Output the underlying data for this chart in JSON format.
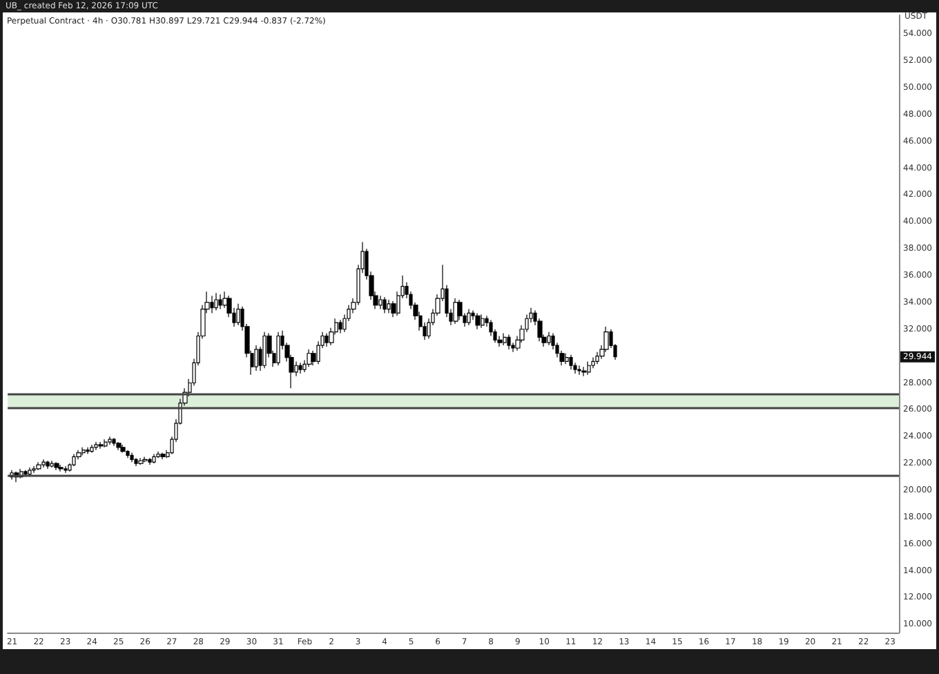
{
  "chart_data": {
    "type": "candlestick",
    "title": "Perpetual Contract · 4h · O30.781 H30.897 L29.721 C29.944 -0.837 (-2.72%)",
    "subtitle": "UB_ created Feb 12, 2026 17:09 UTC",
    "ylabel": "USDT",
    "x": [
      "2026-01-21T00:00",
      "2026-01-21T04:00",
      "2026-01-21T08:00",
      "2026-01-21T12:00",
      "2026-01-21T16:00",
      "2026-01-21T20:00",
      "2026-01-22T00:00",
      "2026-01-22T04:00",
      "2026-01-22T08:00",
      "2026-01-22T12:00",
      "2026-01-22T16:00",
      "2026-01-22T20:00",
      "2026-01-23T00:00",
      "2026-01-23T04:00",
      "2026-01-23T08:00",
      "2026-01-23T12:00",
      "2026-01-23T16:00",
      "2026-01-23T20:00",
      "2026-01-24T00:00",
      "2026-01-24T04:00",
      "2026-01-24T08:00",
      "2026-01-24T12:00",
      "2026-01-24T16:00",
      "2026-01-24T20:00",
      "2026-01-25T00:00",
      "2026-01-25T04:00",
      "2026-01-25T08:00",
      "2026-01-25T12:00",
      "2026-01-25T16:00",
      "2026-01-25T20:00",
      "2026-01-26T00:00",
      "2026-01-26T04:00",
      "2026-01-26T08:00",
      "2026-01-26T12:00",
      "2026-01-26T16:00",
      "2026-01-26T20:00",
      "2026-01-27T00:00",
      "2026-01-27T04:00",
      "2026-01-27T08:00",
      "2026-01-27T12:00",
      "2026-01-27T16:00",
      "2026-01-27T20:00",
      "2026-01-28T00:00",
      "2026-01-28T04:00",
      "2026-01-28T08:00",
      "2026-01-28T12:00",
      "2026-01-28T16:00",
      "2026-01-28T20:00",
      "2026-01-29T00:00",
      "2026-01-29T04:00",
      "2026-01-29T08:00",
      "2026-01-29T12:00",
      "2026-01-29T16:00",
      "2026-01-29T20:00",
      "2026-01-30T00:00",
      "2026-01-30T04:00",
      "2026-01-30T08:00",
      "2026-01-30T12:00",
      "2026-01-30T16:00",
      "2026-01-30T20:00",
      "2026-01-31T00:00",
      "2026-01-31T04:00",
      "2026-01-31T08:00",
      "2026-01-31T12:00",
      "2026-01-31T16:00",
      "2026-01-31T20:00",
      "2026-02-01T00:00",
      "2026-02-01T04:00",
      "2026-02-01T08:00",
      "2026-02-01T12:00",
      "2026-02-01T16:00",
      "2026-02-01T20:00",
      "2026-02-02T00:00",
      "2026-02-02T04:00",
      "2026-02-02T08:00",
      "2026-02-02T12:00",
      "2026-02-02T16:00",
      "2026-02-02T20:00",
      "2026-02-03T00:00",
      "2026-02-03T04:00",
      "2026-02-03T08:00",
      "2026-02-03T12:00",
      "2026-02-03T16:00",
      "2026-02-03T20:00",
      "2026-02-04T00:00",
      "2026-02-04T04:00",
      "2026-02-04T08:00",
      "2026-02-04T12:00",
      "2026-02-04T16:00",
      "2026-02-04T20:00",
      "2026-02-05T00:00",
      "2026-02-05T04:00",
      "2026-02-05T08:00",
      "2026-02-05T12:00",
      "2026-02-05T16:00",
      "2026-02-05T20:00",
      "2026-02-06T00:00",
      "2026-02-06T04:00",
      "2026-02-06T08:00",
      "2026-02-06T12:00",
      "2026-02-06T16:00",
      "2026-02-06T20:00",
      "2026-02-07T00:00",
      "2026-02-07T04:00",
      "2026-02-07T08:00",
      "2026-02-07T12:00",
      "2026-02-07T16:00",
      "2026-02-07T20:00",
      "2026-02-08T00:00",
      "2026-02-08T04:00",
      "2026-02-08T08:00",
      "2026-02-08T12:00",
      "2026-02-08T16:00",
      "2026-02-08T20:00",
      "2026-02-09T00:00",
      "2026-02-09T04:00",
      "2026-02-09T08:00",
      "2026-02-09T12:00",
      "2026-02-09T16:00",
      "2026-02-09T20:00",
      "2026-02-10T00:00",
      "2026-02-10T04:00",
      "2026-02-10T08:00",
      "2026-02-10T12:00",
      "2026-02-10T16:00",
      "2026-02-10T20:00",
      "2026-02-11T00:00",
      "2026-02-11T04:00",
      "2026-02-11T08:00",
      "2026-02-11T12:00",
      "2026-02-11T16:00",
      "2026-02-11T20:00",
      "2026-02-12T00:00",
      "2026-02-12T04:00",
      "2026-02-12T08:00",
      "2026-02-12T12:00",
      "2026-02-12T16:00"
    ],
    "series": [
      {
        "color": "#000000",
        "ohlc": [
          [
            21.0,
            21.5,
            20.8,
            21.3
          ],
          [
            21.3,
            21.4,
            20.6,
            21.0
          ],
          [
            21.0,
            21.6,
            20.9,
            21.4
          ],
          [
            21.4,
            21.5,
            21.0,
            21.2
          ],
          [
            21.2,
            21.7,
            21.1,
            21.5
          ],
          [
            21.5,
            21.8,
            21.3,
            21.6
          ],
          [
            21.6,
            22.1,
            21.5,
            21.9
          ],
          [
            21.9,
            22.3,
            21.7,
            22.1
          ],
          [
            22.1,
            22.2,
            21.6,
            21.8
          ],
          [
            21.8,
            22.2,
            21.7,
            22.0
          ],
          [
            22.0,
            22.1,
            21.5,
            21.7
          ],
          [
            21.7,
            21.9,
            21.4,
            21.6
          ],
          [
            21.6,
            21.8,
            21.3,
            21.5
          ],
          [
            21.5,
            22.0,
            21.4,
            21.9
          ],
          [
            21.9,
            22.7,
            21.8,
            22.5
          ],
          [
            22.5,
            23.0,
            22.3,
            22.8
          ],
          [
            22.8,
            23.2,
            22.6,
            23.0
          ],
          [
            23.0,
            23.2,
            22.7,
            22.9
          ],
          [
            22.9,
            23.4,
            22.8,
            23.2
          ],
          [
            23.2,
            23.6,
            23.0,
            23.4
          ],
          [
            23.4,
            23.6,
            23.1,
            23.3
          ],
          [
            23.3,
            23.8,
            23.2,
            23.6
          ],
          [
            23.6,
            24.0,
            23.4,
            23.8
          ],
          [
            23.8,
            23.9,
            23.3,
            23.5
          ],
          [
            23.5,
            23.6,
            23.0,
            23.2
          ],
          [
            23.2,
            23.4,
            22.8,
            22.9
          ],
          [
            22.9,
            23.0,
            22.4,
            22.6
          ],
          [
            22.6,
            22.8,
            22.1,
            22.3
          ],
          [
            22.3,
            22.4,
            21.8,
            22.0
          ],
          [
            22.0,
            22.4,
            21.9,
            22.2
          ],
          [
            22.2,
            22.5,
            22.1,
            22.3
          ],
          [
            22.3,
            22.4,
            21.9,
            22.1
          ],
          [
            22.1,
            22.7,
            22.0,
            22.5
          ],
          [
            22.5,
            22.9,
            22.4,
            22.7
          ],
          [
            22.7,
            22.8,
            22.3,
            22.5
          ],
          [
            22.5,
            23.0,
            22.4,
            22.8
          ],
          [
            22.8,
            24.0,
            22.7,
            23.8
          ],
          [
            23.8,
            25.3,
            23.6,
            25.0
          ],
          [
            25.0,
            26.8,
            24.9,
            26.5
          ],
          [
            26.5,
            27.6,
            26.3,
            27.3
          ],
          [
            27.3,
            28.3,
            27.0,
            28.0
          ],
          [
            28.0,
            29.8,
            27.8,
            29.5
          ],
          [
            29.5,
            31.8,
            29.3,
            31.5
          ],
          [
            31.5,
            33.8,
            31.3,
            33.5
          ],
          [
            33.5,
            34.8,
            33.2,
            34.0
          ],
          [
            34.0,
            34.5,
            33.2,
            33.6
          ],
          [
            33.6,
            34.7,
            33.4,
            34.2
          ],
          [
            34.2,
            34.6,
            33.5,
            33.8
          ],
          [
            33.8,
            34.8,
            33.6,
            34.3
          ],
          [
            34.3,
            34.5,
            32.9,
            33.2
          ],
          [
            33.2,
            33.6,
            32.2,
            32.5
          ],
          [
            32.5,
            33.9,
            32.3,
            33.5
          ],
          [
            33.5,
            33.7,
            31.9,
            32.2
          ],
          [
            32.2,
            32.4,
            29.9,
            30.2
          ],
          [
            30.2,
            30.4,
            28.6,
            29.2
          ],
          [
            29.2,
            30.8,
            28.9,
            30.5
          ],
          [
            30.5,
            30.7,
            28.9,
            29.3
          ],
          [
            29.3,
            31.8,
            29.1,
            31.5
          ],
          [
            31.5,
            31.7,
            29.9,
            30.2
          ],
          [
            30.2,
            30.4,
            29.2,
            29.5
          ],
          [
            29.5,
            31.8,
            29.3,
            31.5
          ],
          [
            31.5,
            31.9,
            30.5,
            30.8
          ],
          [
            30.8,
            31.0,
            29.6,
            29.9
          ],
          [
            29.9,
            30.1,
            27.6,
            28.8
          ],
          [
            28.8,
            29.6,
            28.5,
            29.3
          ],
          [
            29.3,
            29.5,
            28.7,
            29.0
          ],
          [
            29.0,
            29.7,
            28.8,
            29.4
          ],
          [
            29.4,
            30.5,
            29.2,
            30.2
          ],
          [
            30.2,
            30.4,
            29.3,
            29.6
          ],
          [
            29.6,
            31.1,
            29.4,
            30.8
          ],
          [
            30.8,
            31.8,
            30.6,
            31.5
          ],
          [
            31.5,
            31.7,
            30.7,
            31.0
          ],
          [
            31.0,
            32.1,
            30.8,
            31.8
          ],
          [
            31.8,
            32.8,
            31.6,
            32.5
          ],
          [
            32.5,
            32.7,
            31.7,
            32.0
          ],
          [
            32.0,
            33.1,
            31.8,
            32.8
          ],
          [
            32.8,
            33.8,
            32.6,
            33.5
          ],
          [
            33.5,
            34.3,
            33.2,
            34.0
          ],
          [
            34.0,
            36.8,
            33.8,
            36.5
          ],
          [
            36.5,
            38.5,
            36.2,
            37.8
          ],
          [
            37.8,
            38.0,
            35.7,
            36.0
          ],
          [
            36.0,
            36.3,
            34.2,
            34.5
          ],
          [
            34.5,
            34.8,
            33.5,
            33.8
          ],
          [
            33.8,
            34.5,
            33.5,
            34.2
          ],
          [
            34.2,
            34.4,
            33.2,
            33.5
          ],
          [
            33.5,
            34.2,
            33.2,
            33.9
          ],
          [
            33.9,
            34.1,
            32.9,
            33.2
          ],
          [
            33.2,
            34.8,
            33.0,
            34.5
          ],
          [
            34.5,
            36.0,
            34.3,
            35.2
          ],
          [
            35.2,
            35.5,
            34.3,
            34.6
          ],
          [
            34.6,
            34.8,
            33.5,
            33.8
          ],
          [
            33.8,
            34.0,
            32.7,
            33.0
          ],
          [
            33.0,
            33.3,
            31.9,
            32.2
          ],
          [
            32.2,
            32.5,
            31.2,
            31.5
          ],
          [
            31.5,
            32.8,
            31.3,
            32.5
          ],
          [
            32.5,
            33.5,
            32.3,
            33.2
          ],
          [
            33.2,
            34.6,
            33.0,
            34.3
          ],
          [
            34.3,
            36.8,
            34.1,
            35.0
          ],
          [
            35.0,
            35.3,
            32.9,
            33.2
          ],
          [
            33.2,
            33.5,
            32.3,
            32.6
          ],
          [
            32.6,
            34.3,
            32.4,
            34.0
          ],
          [
            34.0,
            34.2,
            32.7,
            33.0
          ],
          [
            33.0,
            33.2,
            32.2,
            32.5
          ],
          [
            32.5,
            33.5,
            32.3,
            33.2
          ],
          [
            33.2,
            33.4,
            32.7,
            33.0
          ],
          [
            33.0,
            33.2,
            32.0,
            32.3
          ],
          [
            32.3,
            33.1,
            32.1,
            32.8
          ],
          [
            32.8,
            33.0,
            32.2,
            32.5
          ],
          [
            32.5,
            32.7,
            31.5,
            31.8
          ],
          [
            31.8,
            32.0,
            31.0,
            31.2
          ],
          [
            31.2,
            31.5,
            30.7,
            31.0
          ],
          [
            31.0,
            31.7,
            30.8,
            31.4
          ],
          [
            31.4,
            31.6,
            30.5,
            30.8
          ],
          [
            30.8,
            31.0,
            30.3,
            30.6
          ],
          [
            30.6,
            31.5,
            30.4,
            31.2
          ],
          [
            31.2,
            32.3,
            31.0,
            32.0
          ],
          [
            32.0,
            33.1,
            31.8,
            32.8
          ],
          [
            32.8,
            33.6,
            32.5,
            33.2
          ],
          [
            33.2,
            33.4,
            32.3,
            32.6
          ],
          [
            32.6,
            32.8,
            31.1,
            31.4
          ],
          [
            31.4,
            31.6,
            30.7,
            31.0
          ],
          [
            31.0,
            31.8,
            30.8,
            31.5
          ],
          [
            31.5,
            31.7,
            30.5,
            30.8
          ],
          [
            30.8,
            31.0,
            29.9,
            30.2
          ],
          [
            30.2,
            30.4,
            29.3,
            29.6
          ],
          [
            29.6,
            30.2,
            29.4,
            29.9
          ],
          [
            29.9,
            30.1,
            29.0,
            29.3
          ],
          [
            29.3,
            29.5,
            28.7,
            29.0
          ],
          [
            29.0,
            29.3,
            28.6,
            28.9
          ],
          [
            28.9,
            29.2,
            28.5,
            28.8
          ],
          [
            28.8,
            29.6,
            28.6,
            29.3
          ],
          [
            29.3,
            29.9,
            29.1,
            29.6
          ],
          [
            29.6,
            30.3,
            29.4,
            30.0
          ],
          [
            30.0,
            30.8,
            29.8,
            30.5
          ],
          [
            30.5,
            32.2,
            30.3,
            31.8
          ],
          [
            31.8,
            32.0,
            30.6,
            30.781
          ],
          [
            30.781,
            30.897,
            29.721,
            29.944
          ]
        ]
      }
    ],
    "xlim": [
      "2026-01-20T20:00",
      "2026-02-23T08:00"
    ],
    "xticks": [
      {
        "value": "2026-01-21",
        "label": "21"
      },
      {
        "value": "2026-01-22",
        "label": "22"
      },
      {
        "value": "2026-01-23",
        "label": "23"
      },
      {
        "value": "2026-01-24",
        "label": "24"
      },
      {
        "value": "2026-01-25",
        "label": "25"
      },
      {
        "value": "2026-01-26",
        "label": "26"
      },
      {
        "value": "2026-01-27",
        "label": "27"
      },
      {
        "value": "2026-01-28",
        "label": "28"
      },
      {
        "value": "2026-01-29",
        "label": "29"
      },
      {
        "value": "2026-01-30",
        "label": "30"
      },
      {
        "value": "2026-01-31",
        "label": "31"
      },
      {
        "value": "2026-02-01",
        "label": "Feb"
      },
      {
        "value": "2026-02-02",
        "label": "2"
      },
      {
        "value": "2026-02-03",
        "label": "3"
      },
      {
        "value": "2026-02-04",
        "label": "4"
      },
      {
        "value": "2026-02-05",
        "label": "5"
      },
      {
        "value": "2026-02-06",
        "label": "6"
      },
      {
        "value": "2026-02-07",
        "label": "7"
      },
      {
        "value": "2026-02-08",
        "label": "8"
      },
      {
        "value": "2026-02-09",
        "label": "9"
      },
      {
        "value": "2026-02-10",
        "label": "10"
      },
      {
        "value": "2026-02-11",
        "label": "11"
      },
      {
        "value": "2026-02-12",
        "label": "12"
      },
      {
        "value": "2026-02-13",
        "label": "13"
      },
      {
        "value": "2026-02-14",
        "label": "14"
      },
      {
        "value": "2026-02-15",
        "label": "15"
      },
      {
        "value": "2026-02-16",
        "label": "16"
      },
      {
        "value": "2026-02-17",
        "label": "17"
      },
      {
        "value": "2026-02-18",
        "label": "18"
      },
      {
        "value": "2026-02-19",
        "label": "19"
      },
      {
        "value": "2026-02-20",
        "label": "20"
      },
      {
        "value": "2026-02-21",
        "label": "21"
      },
      {
        "value": "2026-02-22",
        "label": "22"
      },
      {
        "value": "2026-02-23",
        "label": "23"
      }
    ],
    "ylim": [
      9.4,
      55.4
    ],
    "yticks": [
      {
        "value": 10,
        "label": "10.000"
      },
      {
        "value": 12,
        "label": "12.000"
      },
      {
        "value": 14,
        "label": "14.000"
      },
      {
        "value": 16,
        "label": "16.000"
      },
      {
        "value": 18,
        "label": "18.000"
      },
      {
        "value": 20,
        "label": "20.000"
      },
      {
        "value": 22,
        "label": "22.000"
      },
      {
        "value": 24,
        "label": "24.000"
      },
      {
        "value": 26,
        "label": "26.000"
      },
      {
        "value": 28,
        "label": "28.000"
      },
      {
        "value": 32,
        "label": "32.000"
      },
      {
        "value": 34,
        "label": "34.000"
      },
      {
        "value": 36,
        "label": "36.000"
      },
      {
        "value": 38,
        "label": "38.000"
      },
      {
        "value": 40,
        "label": "40.000"
      },
      {
        "value": 42,
        "label": "42.000"
      },
      {
        "value": 44,
        "label": "44.000"
      },
      {
        "value": 46,
        "label": "46.000"
      },
      {
        "value": 48,
        "label": "48.000"
      },
      {
        "value": 50,
        "label": "50.000"
      },
      {
        "value": 52,
        "label": "52.000"
      },
      {
        "value": 54,
        "label": "54.000"
      }
    ],
    "ref_lines": [
      {
        "axis": "y",
        "value": 27.2,
        "color": "#444444"
      },
      {
        "axis": "y",
        "value": 26.1,
        "color": "#444444"
      },
      {
        "axis": "y",
        "value": 21.1,
        "color": "#444444"
      }
    ],
    "bands": [
      {
        "axis": "y",
        "from": 26.1,
        "to": 27.2,
        "color": "#dcefd9"
      }
    ],
    "annotations": [
      {
        "text": "29.944",
        "y": 29.944
      }
    ],
    "grid": false
  }
}
